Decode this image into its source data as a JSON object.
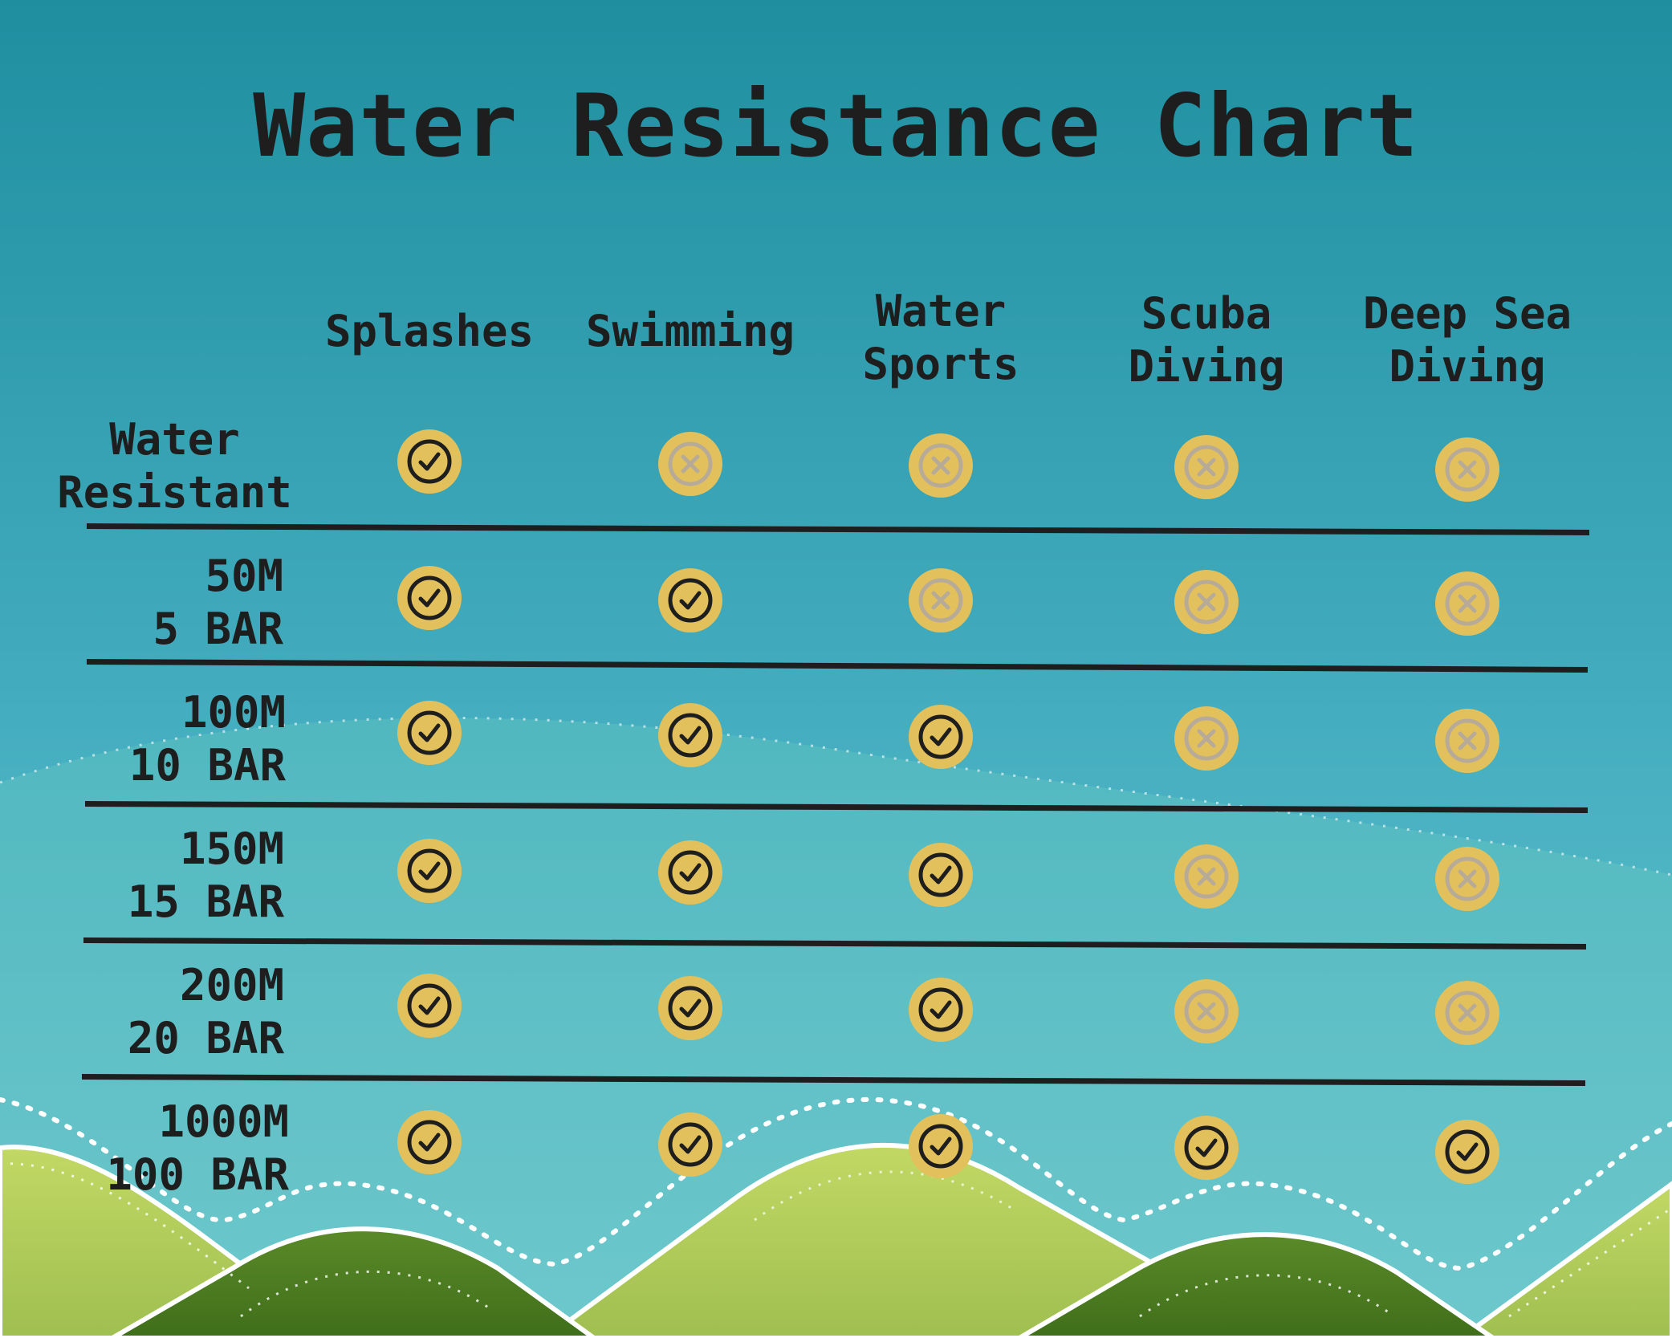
{
  "title": "Water Resistance Chart",
  "columns": [
    "Splashes",
    "Swimming",
    "Water Sports",
    "Scuba Diving",
    "Deep Sea Diving"
  ],
  "column_lines": [
    [
      "Splashes"
    ],
    [
      "Swimming"
    ],
    [
      "Water",
      "Sports"
    ],
    [
      "Scuba",
      "Diving"
    ],
    [
      "Deep Sea",
      "Diving"
    ]
  ],
  "rows": [
    {
      "line1": "Water",
      "line2": "Resistant",
      "values": [
        true,
        false,
        false,
        false,
        false
      ]
    },
    {
      "line1": "50M",
      "line2": "5 BAR",
      "values": [
        true,
        true,
        false,
        false,
        false
      ]
    },
    {
      "line1": "100M",
      "line2": "10 BAR",
      "values": [
        true,
        true,
        true,
        false,
        false
      ]
    },
    {
      "line1": "150M",
      "line2": "15 BAR",
      "values": [
        true,
        true,
        true,
        false,
        false
      ]
    },
    {
      "line1": "200M",
      "line2": "20 BAR",
      "values": [
        true,
        true,
        true,
        false,
        false
      ]
    },
    {
      "line1": "1000M",
      "line2": "100 BAR",
      "values": [
        true,
        true,
        true,
        true,
        true
      ]
    }
  ],
  "icons": {
    "yes": "check-icon",
    "no": "x-icon"
  },
  "colors": {
    "sky_top": "#1f8fa0",
    "sky_bottom": "#6ac8d0",
    "text": "#1e1e1e",
    "badge": "#e2c15c",
    "no_mark": "#b7ab98",
    "hill_light": "#b6cf5c",
    "hill_dark": "#4b7a20"
  }
}
